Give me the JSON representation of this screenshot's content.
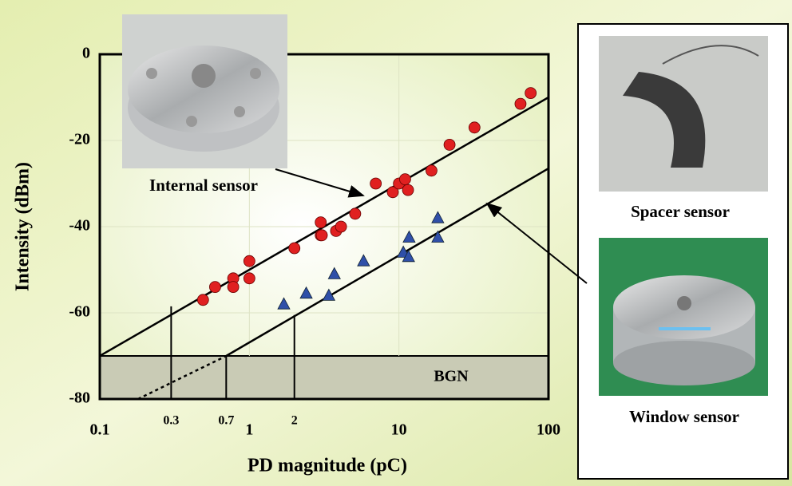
{
  "chart_data": {
    "type": "scatter",
    "y_label": "Intensity (dBm)",
    "x_label": "PD magnitude (pC)",
    "xlim": [
      0.1,
      100
    ],
    "ylim": [
      -80,
      0
    ],
    "x_log": true,
    "xticks": [
      0.1,
      1,
      10,
      100
    ],
    "yticks": [
      0,
      -20,
      -40,
      -60,
      -80
    ],
    "grid": true,
    "series": [
      {
        "color": "#e02020",
        "marker": "circle",
        "x": [
          0.49,
          0.59,
          0.78,
          0.78,
          1.0,
          1.0,
          2.0,
          3.0,
          3.0,
          3.05,
          3.8,
          4.1,
          5.1,
          7.0,
          9.1,
          10,
          11,
          11.5,
          16.5,
          21.8,
          32,
          65,
          76
        ],
        "values": [
          -57,
          -54,
          -52,
          -54,
          -48,
          -52,
          -45,
          -39,
          -42,
          -42,
          -41,
          -40,
          -37,
          -30,
          -32,
          -30,
          -29,
          -31.5,
          -27,
          -21,
          -17,
          -11.5,
          -9
        ]
      },
      {
        "color": "#2f4fa8",
        "marker": "triangle",
        "x": [
          1.7,
          2.4,
          3.4,
          3.7,
          5.8,
          10.7,
          11.6,
          11.7,
          18.2,
          18.2
        ],
        "values": [
          -58,
          -55.5,
          -56,
          -51,
          -48,
          -46,
          -47,
          -42.5,
          -38,
          -42.5
        ]
      }
    ],
    "fits": [
      {
        "x": [
          0.1,
          100
        ],
        "values": [
          -70,
          -10
        ],
        "dashed": false
      },
      {
        "x": [
          0.7,
          100
        ],
        "values": [
          -70,
          -26.5
        ],
        "dashed": false
      },
      {
        "x": [
          0.18,
          0.7
        ],
        "values": [
          -80,
          -70
        ],
        "dashed": true
      }
    ],
    "bgn": {
      "label": "BGN",
      "top": -70
    },
    "guide_lines": [
      {
        "x": 0.3,
        "y": -58.5
      },
      {
        "x": 0.7,
        "y": -70
      },
      {
        "x": 2,
        "y": -60.5
      }
    ],
    "annotations": {
      "internal": "Internal sensor",
      "spacer": "Spacer sensor",
      "window": "Window sensor"
    }
  }
}
